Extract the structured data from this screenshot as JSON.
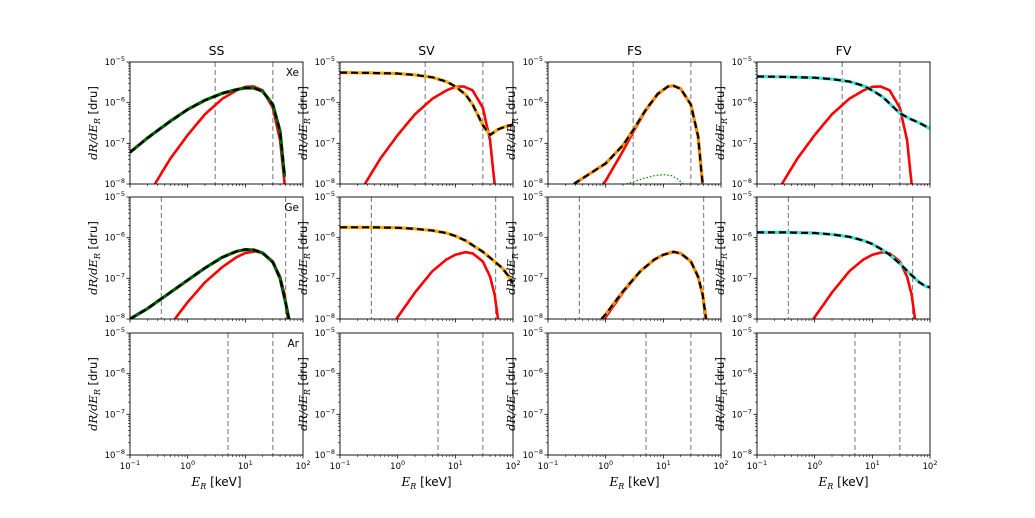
{
  "chart_data": {
    "type": "line",
    "layout": "grid 3 rows x 4 columns, shared axes",
    "columns": [
      "SS",
      "SV",
      "FS",
      "FV"
    ],
    "rows": [
      "Xe",
      "Ge",
      "Ar"
    ],
    "xscale": "log",
    "yscale": "log",
    "xlim": [
      0.1,
      100
    ],
    "ylim": [
      1e-08,
      1e-05
    ],
    "x_ticks": [
      {
        "value": 0.1,
        "base": "10",
        "exp": "−1"
      },
      {
        "value": 1,
        "base": "10",
        "exp": "0"
      },
      {
        "value": 10,
        "base": "10",
        "exp": "1"
      },
      {
        "value": 100,
        "base": "10",
        "exp": "2"
      }
    ],
    "y_ticks": [
      {
        "value": 1e-08,
        "base": "10",
        "exp": "−8"
      },
      {
        "value": 1e-07,
        "base": "10",
        "exp": "−7"
      },
      {
        "value": 1e-06,
        "base": "10",
        "exp": "−6"
      },
      {
        "value": 1e-05,
        "base": "10",
        "exp": "−5"
      }
    ],
    "xlabel": {
      "symbol": "E",
      "sub": "R",
      "unit": " [keV]"
    },
    "ylabel": {
      "symbol": "dR/dE",
      "sub": "R",
      "unit": " [dru]"
    },
    "colors": {
      "reference": "#ff0000",
      "SS": "#006400",
      "SV": "#ffa500",
      "FS": "#ff8c00",
      "FV": "#40e0d0",
      "interference": "#228b22",
      "threshold": "#808080"
    },
    "thresholds_keV": {
      "Xe": [
        3,
        30
      ],
      "Ge": [
        0.35,
        50
      ],
      "Ar": [
        5,
        30
      ],
      "Ar_SS": [
        5,
        30
      ]
    },
    "panels": [
      {
        "row": "Xe",
        "col": "SS",
        "label": "Xe",
        "thresholds": [
          3,
          30
        ],
        "reference": [
          [
            0.27,
            1e-08
          ],
          [
            0.5,
            4.2e-08
          ],
          [
            1,
            1.6e-07
          ],
          [
            2,
            5.2e-07
          ],
          [
            4,
            1.25e-06
          ],
          [
            7,
            2e-06
          ],
          [
            10,
            2.45e-06
          ],
          [
            14,
            2.5e-06
          ],
          [
            20,
            2e-06
          ],
          [
            30,
            7.5e-07
          ],
          [
            40,
            1.2e-07
          ],
          [
            48,
            1e-08
          ]
        ],
        "model": [
          [
            0.1,
            6e-08
          ],
          [
            0.2,
            1.35e-07
          ],
          [
            0.5,
            3.5e-07
          ],
          [
            1,
            6.8e-07
          ],
          [
            2,
            1.15e-06
          ],
          [
            4,
            1.7e-06
          ],
          [
            7,
            2.1e-06
          ],
          [
            10,
            2.3e-06
          ],
          [
            14,
            2.3e-06
          ],
          [
            20,
            1.9e-06
          ],
          [
            30,
            9e-07
          ],
          [
            40,
            2e-07
          ],
          [
            48,
            1.5e-08
          ]
        ]
      },
      {
        "row": "Xe",
        "col": "SV",
        "label": "",
        "thresholds": [
          3,
          30
        ],
        "reference": [
          [
            0.27,
            1e-08
          ],
          [
            0.5,
            4.2e-08
          ],
          [
            1,
            1.6e-07
          ],
          [
            2,
            5.2e-07
          ],
          [
            4,
            1.25e-06
          ],
          [
            7,
            2e-06
          ],
          [
            10,
            2.45e-06
          ],
          [
            14,
            2.5e-06
          ],
          [
            20,
            2e-06
          ],
          [
            30,
            7.5e-07
          ],
          [
            40,
            1.2e-07
          ],
          [
            48,
            1e-08
          ]
        ],
        "model": [
          [
            0.1,
            5.5e-06
          ],
          [
            0.3,
            5.4e-06
          ],
          [
            1,
            5.2e-06
          ],
          [
            2,
            4.8e-06
          ],
          [
            4,
            4.2e-06
          ],
          [
            7,
            3.3e-06
          ],
          [
            10,
            2.5e-06
          ],
          [
            15,
            1.6e-06
          ],
          [
            20,
            9e-07
          ],
          [
            30,
            2.8e-07
          ],
          [
            40,
            1.6e-07
          ],
          [
            55,
            2.2e-07
          ],
          [
            75,
            2.6e-07
          ],
          [
            100,
            2.9e-07
          ]
        ]
      },
      {
        "row": "Xe",
        "col": "FS",
        "label": "",
        "thresholds": [
          3,
          30
        ],
        "reference": [
          [
            0.9,
            1e-08
          ],
          [
            1,
            1.2e-08
          ],
          [
            2,
            6.5e-08
          ],
          [
            3,
            1.9e-07
          ],
          [
            5,
            6.5e-07
          ],
          [
            8,
            1.6e-06
          ],
          [
            12,
            2.5e-06
          ],
          [
            15,
            2.6e-06
          ],
          [
            20,
            2.2e-06
          ],
          [
            30,
            9e-07
          ],
          [
            40,
            1.5e-07
          ],
          [
            48,
            1e-08
          ]
        ],
        "model": [
          [
            0.28,
            1e-08
          ],
          [
            0.5,
            1.7e-08
          ],
          [
            1,
            3.2e-08
          ],
          [
            2,
            9e-08
          ],
          [
            3,
            2.1e-07
          ],
          [
            5,
            6.8e-07
          ],
          [
            8,
            1.65e-06
          ],
          [
            12,
            2.5e-06
          ],
          [
            15,
            2.6e-06
          ],
          [
            20,
            2.2e-06
          ],
          [
            30,
            9e-07
          ],
          [
            40,
            1.5e-07
          ],
          [
            48,
            1e-08
          ]
        ],
        "interference": [
          [
            2.3,
            1e-08
          ],
          [
            4,
            1.3e-08
          ],
          [
            7,
            1.6e-08
          ],
          [
            10,
            1.7e-08
          ],
          [
            14,
            1.6e-08
          ],
          [
            18,
            1.3e-08
          ],
          [
            22,
            1e-08
          ]
        ]
      },
      {
        "row": "Xe",
        "col": "FV",
        "label": "",
        "thresholds": [
          3,
          30
        ],
        "reference": [
          [
            0.27,
            1e-08
          ],
          [
            0.5,
            4.2e-08
          ],
          [
            1,
            1.6e-07
          ],
          [
            2,
            5.2e-07
          ],
          [
            4,
            1.25e-06
          ],
          [
            7,
            2e-06
          ],
          [
            10,
            2.45e-06
          ],
          [
            14,
            2.5e-06
          ],
          [
            20,
            2e-06
          ],
          [
            30,
            7.5e-07
          ],
          [
            40,
            1.2e-07
          ],
          [
            48,
            1e-08
          ]
        ],
        "model": [
          [
            0.1,
            4.4e-06
          ],
          [
            0.3,
            4.3e-06
          ],
          [
            1,
            4.1e-06
          ],
          [
            2,
            3.8e-06
          ],
          [
            4,
            3.3e-06
          ],
          [
            7,
            2.6e-06
          ],
          [
            10,
            2e-06
          ],
          [
            15,
            1.4e-06
          ],
          [
            20,
            9.5e-07
          ],
          [
            30,
            5.5e-07
          ],
          [
            45,
            4e-07
          ],
          [
            65,
            3.2e-07
          ],
          [
            100,
            2.3e-07
          ]
        ]
      },
      {
        "row": "Ge",
        "col": "SS",
        "label": "Ge",
        "thresholds": [
          0.35,
          50
        ],
        "reference": [
          [
            0.6,
            1e-08
          ],
          [
            1,
            2.6e-08
          ],
          [
            2,
            8e-08
          ],
          [
            4,
            1.9e-07
          ],
          [
            7,
            3.3e-07
          ],
          [
            10,
            4.2e-07
          ],
          [
            15,
            4.6e-07
          ],
          [
            20,
            4.2e-07
          ],
          [
            30,
            2.6e-07
          ],
          [
            40,
            1.1e-07
          ],
          [
            48,
            4e-08
          ],
          [
            55,
            1e-08
          ]
        ],
        "model": [
          [
            0.1,
            1e-08
          ],
          [
            0.2,
            1.8e-08
          ],
          [
            0.5,
            4.5e-08
          ],
          [
            1,
            9e-08
          ],
          [
            2,
            1.8e-07
          ],
          [
            4,
            3.3e-07
          ],
          [
            7,
            4.6e-07
          ],
          [
            10,
            5.1e-07
          ],
          [
            14,
            5e-07
          ],
          [
            20,
            4.2e-07
          ],
          [
            30,
            2.5e-07
          ],
          [
            40,
            1e-07
          ],
          [
            50,
            2.5e-08
          ],
          [
            57,
            1e-08
          ]
        ]
      },
      {
        "row": "Ge",
        "col": "SV",
        "label": "",
        "thresholds": [
          0.35,
          50
        ],
        "reference": [
          [
            0.95,
            1e-08
          ],
          [
            2,
            4.5e-08
          ],
          [
            4,
            1.5e-07
          ],
          [
            7,
            2.9e-07
          ],
          [
            10,
            3.8e-07
          ],
          [
            15,
            4.4e-07
          ],
          [
            20,
            4.1e-07
          ],
          [
            30,
            2.6e-07
          ],
          [
            40,
            1.1e-07
          ],
          [
            48,
            4e-08
          ],
          [
            55,
            1e-08
          ]
        ],
        "model": [
          [
            0.1,
            1.8e-06
          ],
          [
            0.3,
            1.8e-06
          ],
          [
            1,
            1.75e-06
          ],
          [
            2,
            1.65e-06
          ],
          [
            4,
            1.5e-06
          ],
          [
            7,
            1.3e-06
          ],
          [
            10,
            1.1e-06
          ],
          [
            15,
            8.5e-07
          ],
          [
            20,
            6.5e-07
          ],
          [
            30,
            4.5e-07
          ],
          [
            45,
            2.8e-07
          ],
          [
            65,
            1.8e-07
          ],
          [
            85,
            1.1e-07
          ],
          [
            100,
            7.5e-08
          ]
        ]
      },
      {
        "row": "Ge",
        "col": "FS",
        "label": "",
        "thresholds": [
          0.35,
          50
        ],
        "reference": [
          [
            0.95,
            1e-08
          ],
          [
            2,
            4.5e-08
          ],
          [
            4,
            1.5e-07
          ],
          [
            7,
            2.9e-07
          ],
          [
            10,
            3.8e-07
          ],
          [
            15,
            4.4e-07
          ],
          [
            20,
            4.1e-07
          ],
          [
            30,
            2.6e-07
          ],
          [
            40,
            1.1e-07
          ],
          [
            48,
            4e-08
          ],
          [
            55,
            1e-08
          ]
        ],
        "model": [
          [
            0.85,
            1e-08
          ],
          [
            1,
            1.3e-08
          ],
          [
            2,
            4.8e-08
          ],
          [
            4,
            1.5e-07
          ],
          [
            7,
            2.9e-07
          ],
          [
            10,
            3.8e-07
          ],
          [
            15,
            4.5e-07
          ],
          [
            20,
            4.1e-07
          ],
          [
            30,
            2.6e-07
          ],
          [
            40,
            1.1e-07
          ],
          [
            48,
            4e-08
          ],
          [
            55,
            1e-08
          ]
        ]
      },
      {
        "row": "Ge",
        "col": "FV",
        "label": "",
        "thresholds": [
          0.35,
          50
        ],
        "reference": [
          [
            0.95,
            1e-08
          ],
          [
            2,
            4.5e-08
          ],
          [
            4,
            1.5e-07
          ],
          [
            7,
            2.9e-07
          ],
          [
            10,
            3.8e-07
          ],
          [
            15,
            4.4e-07
          ],
          [
            20,
            4.1e-07
          ],
          [
            30,
            2.6e-07
          ],
          [
            40,
            1.1e-07
          ],
          [
            48,
            4e-08
          ],
          [
            55,
            1e-08
          ]
        ],
        "model": [
          [
            0.1,
            1.35e-06
          ],
          [
            0.3,
            1.35e-06
          ],
          [
            1,
            1.3e-06
          ],
          [
            2,
            1.2e-06
          ],
          [
            4,
            1.05e-06
          ],
          [
            7,
            8.5e-07
          ],
          [
            10,
            7e-07
          ],
          [
            15,
            5e-07
          ],
          [
            20,
            3.8e-07
          ],
          [
            30,
            2.3e-07
          ],
          [
            45,
            1.3e-07
          ],
          [
            65,
            8e-08
          ],
          [
            85,
            6.3e-08
          ],
          [
            100,
            6e-08
          ]
        ]
      },
      {
        "row": "Ar",
        "col": "SS",
        "label": "Ar",
        "thresholds": [
          5,
          30
        ],
        "reference": [],
        "model": []
      },
      {
        "row": "Ar",
        "col": "SV",
        "label": "",
        "thresholds": [
          5,
          30
        ],
        "reference": [],
        "model": []
      },
      {
        "row": "Ar",
        "col": "FS",
        "label": "",
        "thresholds": [
          5,
          30
        ],
        "reference": [],
        "model": []
      },
      {
        "row": "Ar",
        "col": "FV",
        "label": "",
        "thresholds": [
          5,
          30
        ],
        "reference": [],
        "model": []
      }
    ]
  }
}
